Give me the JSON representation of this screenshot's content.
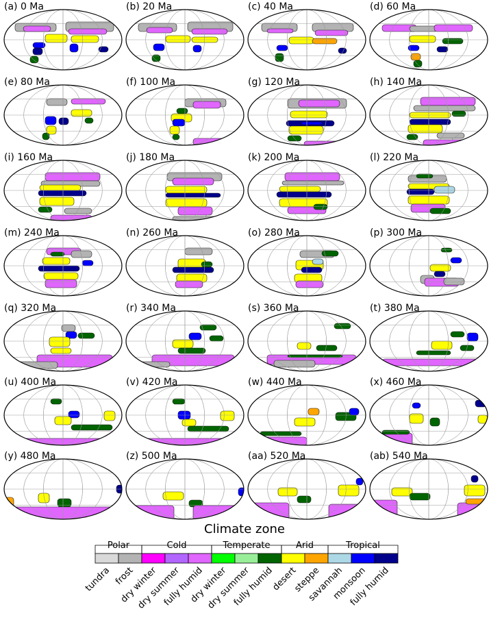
{
  "figure": {
    "panels": [
      {
        "label": "(a) 0 Ma"
      },
      {
        "label": "(b) 20 Ma"
      },
      {
        "label": "(c) 40 Ma"
      },
      {
        "label": "(d) 60 Ma"
      },
      {
        "label": "(e) 80 Ma"
      },
      {
        "label": "(f) 100 Ma"
      },
      {
        "label": "(g) 120 Ma"
      },
      {
        "label": "(h) 140 Ma"
      },
      {
        "label": "(i) 160 Ma"
      },
      {
        "label": "(j) 180 Ma"
      },
      {
        "label": "(k) 200 Ma"
      },
      {
        "label": "(l) 220 Ma"
      },
      {
        "label": "(m) 240 Ma"
      },
      {
        "label": "(n) 260 Ma"
      },
      {
        "label": "(o) 280 Ma"
      },
      {
        "label": "(p) 300 Ma"
      },
      {
        "label": "(q) 320 Ma"
      },
      {
        "label": "(r) 340 Ma"
      },
      {
        "label": "(s) 360 Ma"
      },
      {
        "label": "(t) 380 Ma"
      },
      {
        "label": "(u) 400 Ma"
      },
      {
        "label": "(v) 420 Ma"
      },
      {
        "label": "(w) 440 Ma"
      },
      {
        "label": "(x) 460 Ma"
      },
      {
        "label": "(y) 480 Ma"
      },
      {
        "label": "(z) 500 Ma"
      },
      {
        "label": "(aa) 520 Ma"
      },
      {
        "label": "(ab) 540 Ma"
      }
    ],
    "legend": {
      "title": "Climate zone",
      "groups": [
        "Polar",
        "Cold",
        "Temperate",
        "Arid",
        "Tropical"
      ],
      "zones": [
        {
          "name": "tundra",
          "color": "#d9d9d9"
        },
        {
          "name": "frost",
          "color": "#b3b3b3"
        },
        {
          "name": "dry winter",
          "color": "#ff00ff"
        },
        {
          "name": "dry summer",
          "color": "#b266ff"
        },
        {
          "name": "fully humid",
          "color": "#e066ff"
        },
        {
          "name": "dry winter",
          "color": "#00ff00"
        },
        {
          "name": "dry summer",
          "color": "#99ee99"
        },
        {
          "name": "fully humid",
          "color": "#006400"
        },
        {
          "name": "desert",
          "color": "#ffff00"
        },
        {
          "name": "steppe",
          "color": "#ffa500"
        },
        {
          "name": "savannah",
          "color": "#add8e6"
        },
        {
          "name": "monsoon",
          "color": "#0000ff"
        },
        {
          "name": "fully humid",
          "color": "#00008b"
        }
      ]
    }
  }
}
